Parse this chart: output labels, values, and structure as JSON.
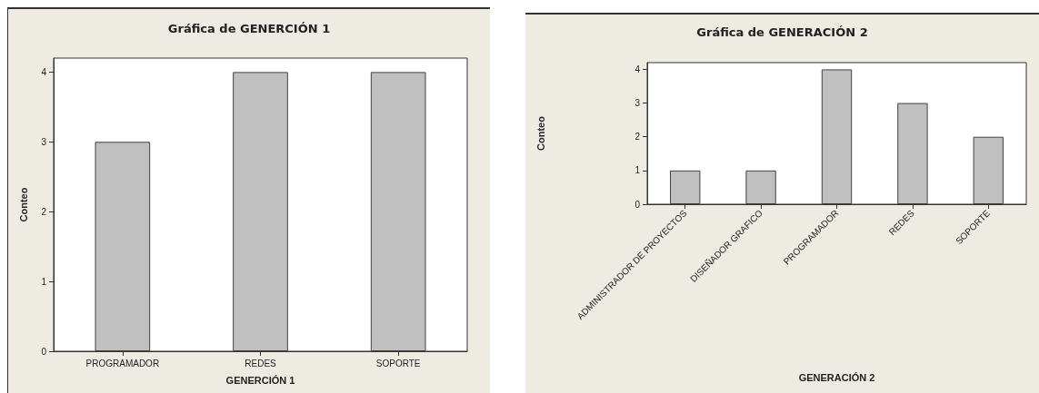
{
  "chart_data": [
    {
      "type": "bar",
      "title": "Gráfica de GENERCIÓN 1",
      "xlabel": "GENERCIÓN 1",
      "ylabel": "Conteo",
      "categories": [
        "PROGRAMADOR",
        "REDES",
        "SOPORTE"
      ],
      "values": [
        3,
        4,
        4
      ],
      "color": "#c0c0c0",
      "ylim": [
        0,
        4.2
      ],
      "yticks": [
        0,
        1,
        2,
        3,
        4
      ],
      "grid": false
    },
    {
      "type": "bar",
      "title": "Gráfica de GENERACIÓN 2",
      "xlabel": "GENERACIÓN 2",
      "ylabel": "Conteo",
      "categories": [
        "ADMINISTRADOR DE PROYECTOS",
        "DISEÑADOR GRAFICO",
        "PROGRAMADOR",
        "REDES",
        "SOPORTE"
      ],
      "values": [
        1,
        1,
        4,
        3,
        2
      ],
      "color": "#c0c0c0",
      "ylim": [
        0,
        4.2
      ],
      "yticks": [
        0,
        1,
        2,
        3,
        4
      ],
      "grid": false
    }
  ]
}
